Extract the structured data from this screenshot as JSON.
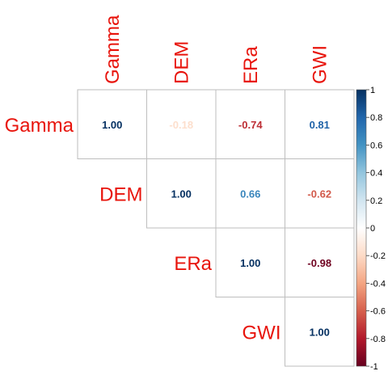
{
  "chart_data": {
    "type": "heatmap",
    "variables": [
      "Gamma",
      "DEM",
      "ERa",
      "GWI"
    ],
    "layout": "upper-triangle",
    "matrix": [
      [
        1.0,
        -0.18,
        -0.74,
        0.81
      ],
      [
        null,
        1.0,
        0.66,
        -0.62
      ],
      [
        null,
        null,
        1.0,
        -0.98
      ],
      [
        null,
        null,
        null,
        1.0
      ]
    ],
    "cells": [
      {
        "row": "Gamma",
        "col": "Gamma",
        "label": "1.00",
        "value": 1.0
      },
      {
        "row": "Gamma",
        "col": "DEM",
        "label": "-0.18",
        "value": -0.18
      },
      {
        "row": "Gamma",
        "col": "ERa",
        "label": "-0.74",
        "value": -0.74
      },
      {
        "row": "Gamma",
        "col": "GWI",
        "label": "0.81",
        "value": 0.81
      },
      {
        "row": "DEM",
        "col": "DEM",
        "label": "1.00",
        "value": 1.0
      },
      {
        "row": "DEM",
        "col": "ERa",
        "label": "0.66",
        "value": 0.66
      },
      {
        "row": "DEM",
        "col": "GWI",
        "label": "-0.62",
        "value": -0.62
      },
      {
        "row": "ERa",
        "col": "ERa",
        "label": "1.00",
        "value": 1.0
      },
      {
        "row": "ERa",
        "col": "GWI",
        "label": "-0.98",
        "value": -0.98
      },
      {
        "row": "GWI",
        "col": "GWI",
        "label": "1.00",
        "value": 1.0
      }
    ],
    "colorbar": {
      "ticks": [
        1,
        0.8,
        0.6,
        0.4,
        0.2,
        0,
        -0.2,
        -0.4,
        -0.6,
        -0.8,
        -1
      ],
      "tick_labels": [
        "1",
        "0.8",
        "0.6",
        "0.4",
        "0.2",
        "0",
        "-0.2",
        "-0.4",
        "-0.6",
        "-0.8",
        "-1"
      ],
      "range": [
        -1,
        1
      ],
      "placement": "right"
    },
    "colormap": [
      "#67001f",
      "#b2182b",
      "#d6604d",
      "#f4a582",
      "#fddbc7",
      "#ffffff",
      "#d1e5f0",
      "#92c5de",
      "#4393c3",
      "#2166ac",
      "#053061"
    ],
    "label_color": "#e8140c",
    "grid_color": "#bebebe",
    "title": "",
    "xlabel": "",
    "ylabel": ""
  }
}
